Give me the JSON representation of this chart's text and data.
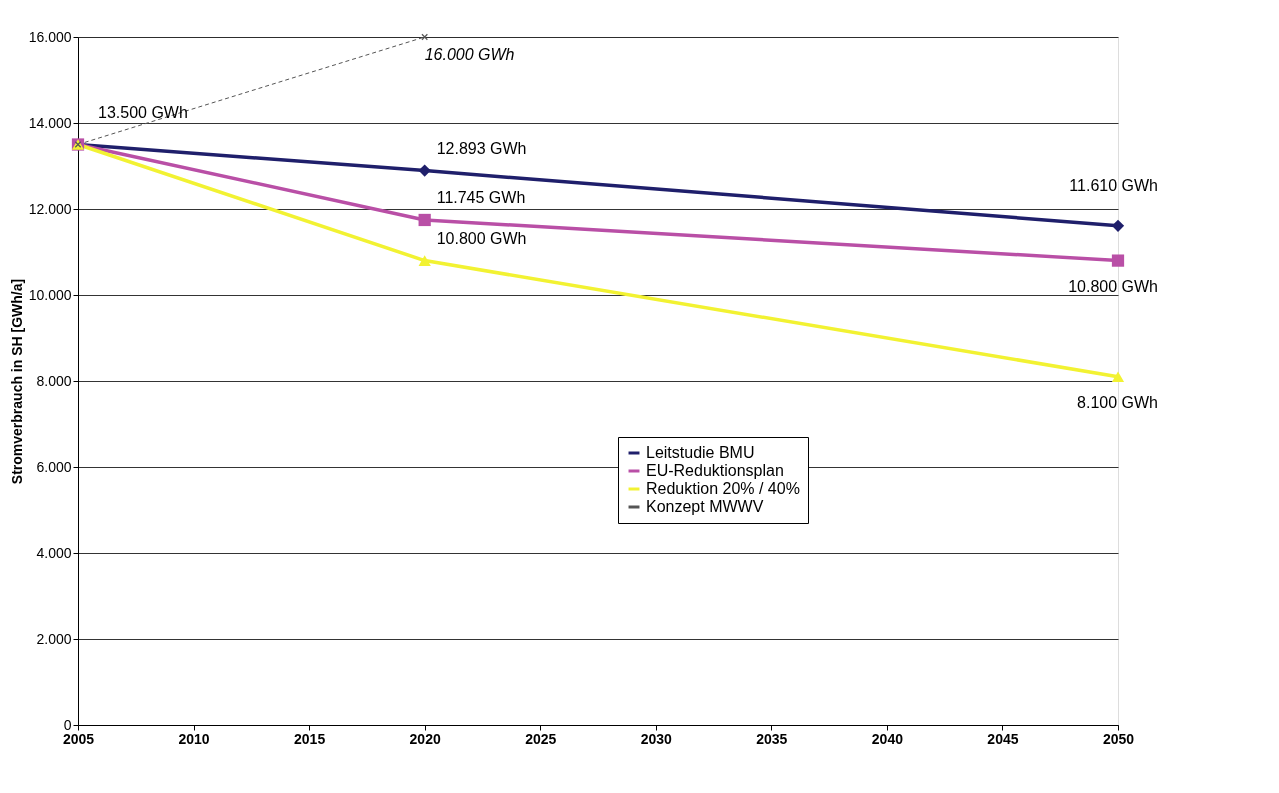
{
  "chart_data": {
    "type": "line",
    "ylabel": "Stromverbrauch in SH [GWh/a]",
    "x": [
      2005,
      2020,
      2050
    ],
    "series": [
      {
        "name": "Leitstudie BMU",
        "color": "#1f1f6b",
        "values": [
          13500,
          12893,
          11610
        ],
        "marker": "diamond",
        "line_style": "solid",
        "value_labels": [
          "13.500 GWh",
          "12.893 GWh",
          "11.610 GWh"
        ]
      },
      {
        "name": "EU-Reduktionsplan",
        "color": "#b94fa6",
        "values": [
          13500,
          11745,
          10800
        ],
        "marker": "square",
        "line_style": "solid",
        "value_labels": [
          null,
          "11.745 GWh",
          "10.800 GWh"
        ]
      },
      {
        "name": "Reduktion 20% / 40%",
        "color": "#f2f232",
        "values": [
          13500,
          10800,
          8100
        ],
        "marker": "triangle",
        "line_style": "solid",
        "value_labels": [
          null,
          "10.800 GWh",
          "8.100 GWh"
        ]
      },
      {
        "name": "Konzept MWWV",
        "color": "#555555",
        "x": [
          2005,
          2020
        ],
        "values": [
          13500,
          16000
        ],
        "marker": "cross",
        "line_style": "dashed",
        "value_labels": [
          null,
          "16.000 GWh"
        ]
      }
    ],
    "xlim": [
      2005,
      2050
    ],
    "xticks": [
      2005,
      2010,
      2015,
      2020,
      2025,
      2030,
      2035,
      2040,
      2045,
      2050
    ],
    "ylim": [
      0,
      16000
    ],
    "yticks": [
      0,
      {
        "value": 2000,
        "label": "2.000"
      },
      {
        "value": 4000,
        "label": "4.000"
      },
      {
        "value": 6000,
        "label": "6.000"
      },
      {
        "value": 8000,
        "label": "8.000"
      },
      {
        "value": 10000,
        "label": "10.000"
      },
      {
        "value": 12000,
        "label": "12.000"
      },
      {
        "value": 14000,
        "label": "14.000"
      },
      {
        "value": 16000,
        "label": "16.000"
      }
    ],
    "grid": "y",
    "legend": "bottom"
  }
}
